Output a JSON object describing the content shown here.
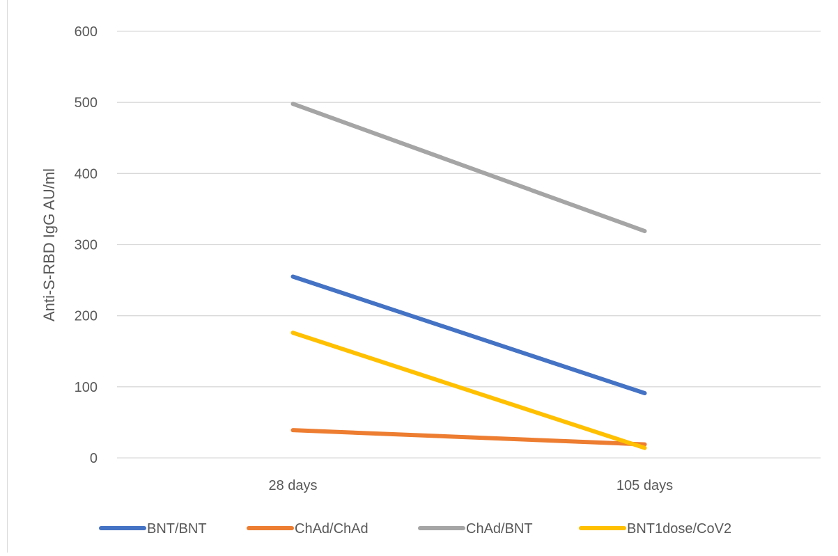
{
  "chart_data": {
    "type": "line",
    "title": "",
    "xlabel": "",
    "ylabel": "Anti-S-RBD IgG AU/ml",
    "categories": [
      "28 days",
      "105 days"
    ],
    "ylim": [
      0,
      600
    ],
    "yticks": [
      "0",
      "100",
      "200",
      "300",
      "400",
      "500",
      "600"
    ],
    "grid": true,
    "legend_position": "bottom",
    "series": [
      {
        "name": "BNT/BNT",
        "values": [
          255,
          91
        ],
        "color": "#4472c4"
      },
      {
        "name": "ChAd/ChAd",
        "values": [
          39,
          19
        ],
        "color": "#ed7d31"
      },
      {
        "name": "ChAd/BNT",
        "values": [
          498,
          319
        ],
        "color": "#a5a5a5"
      },
      {
        "name": "BNT1dose/CoV2",
        "values": [
          176,
          14
        ],
        "color": "#ffc000"
      }
    ]
  }
}
